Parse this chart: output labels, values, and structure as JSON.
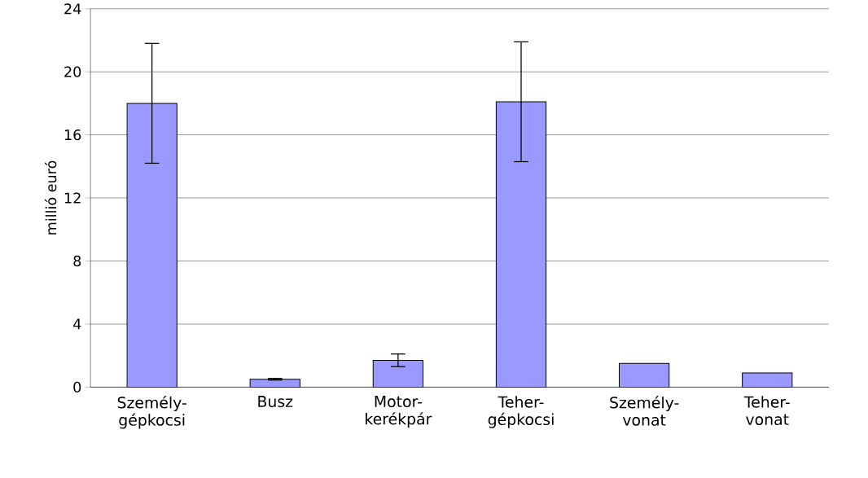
{
  "chart_data": {
    "type": "bar",
    "ylabel": "millió euró",
    "categories": [
      "Személy-gépkocsi",
      "Busz",
      "Motor-kerékpár",
      "Teher-gépkocsi",
      "Személy-vonat",
      "Teher-vonat"
    ],
    "values": [
      18.0,
      0.5,
      1.7,
      18.1,
      1.5,
      0.9
    ],
    "errors": [
      3.8,
      0.05,
      0.4,
      3.8,
      null,
      null
    ],
    "color": "#9999ff",
    "ylim": [
      0,
      24
    ],
    "yticks": [
      0,
      4,
      8,
      12,
      16,
      20,
      24
    ],
    "grid": "y"
  }
}
